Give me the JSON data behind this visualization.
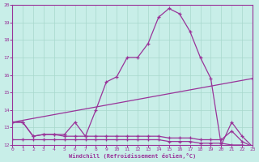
{
  "xlabel": "Windchill (Refroidissement éolien,°C)",
  "xlim": [
    0,
    23
  ],
  "ylim": [
    12,
    20
  ],
  "xticks": [
    0,
    1,
    2,
    3,
    4,
    5,
    6,
    7,
    8,
    9,
    10,
    11,
    12,
    13,
    14,
    15,
    16,
    17,
    18,
    19,
    20,
    21,
    22,
    23
  ],
  "yticks": [
    12,
    13,
    14,
    15,
    16,
    17,
    18,
    19,
    20
  ],
  "bg_color": "#c8eee8",
  "line_color": "#993399",
  "grid_color": "#a8d8cc",
  "series": [
    {
      "x": [
        0,
        1,
        2,
        3,
        4,
        5,
        6,
        7,
        8,
        9,
        10,
        11,
        12,
        13,
        14,
        15,
        16,
        17,
        18,
        19,
        20,
        21,
        22,
        23
      ],
      "y": [
        13.3,
        13.3,
        12.5,
        12.6,
        12.6,
        12.6,
        13.3,
        12.5,
        14.0,
        15.6,
        15.9,
        17.0,
        17.0,
        17.8,
        19.3,
        19.8,
        19.5,
        18.5,
        17.0,
        15.8,
        12.0,
        13.3,
        12.5,
        11.9
      ]
    },
    {
      "x": [
        0,
        23
      ],
      "y": [
        13.3,
        15.8
      ]
    },
    {
      "x": [
        0,
        1,
        2,
        3,
        4,
        5,
        6,
        7,
        8,
        9,
        10,
        11,
        12,
        13,
        14,
        15,
        16,
        17,
        18,
        19,
        20,
        21,
        22,
        23
      ],
      "y": [
        13.3,
        13.3,
        12.5,
        12.6,
        12.6,
        12.5,
        12.5,
        12.5,
        12.5,
        12.5,
        12.5,
        12.5,
        12.5,
        12.5,
        12.5,
        12.4,
        12.4,
        12.4,
        12.3,
        12.3,
        12.3,
        12.8,
        12.2,
        11.9
      ]
    },
    {
      "x": [
        0,
        1,
        2,
        3,
        4,
        5,
        6,
        7,
        8,
        9,
        10,
        11,
        12,
        13,
        14,
        15,
        16,
        17,
        18,
        19,
        20,
        21,
        22,
        23
      ],
      "y": [
        12.3,
        12.3,
        12.3,
        12.3,
        12.3,
        12.3,
        12.3,
        12.3,
        12.3,
        12.3,
        12.3,
        12.3,
        12.3,
        12.3,
        12.3,
        12.2,
        12.2,
        12.2,
        12.1,
        12.1,
        12.1,
        12.0,
        12.0,
        11.9
      ]
    }
  ]
}
